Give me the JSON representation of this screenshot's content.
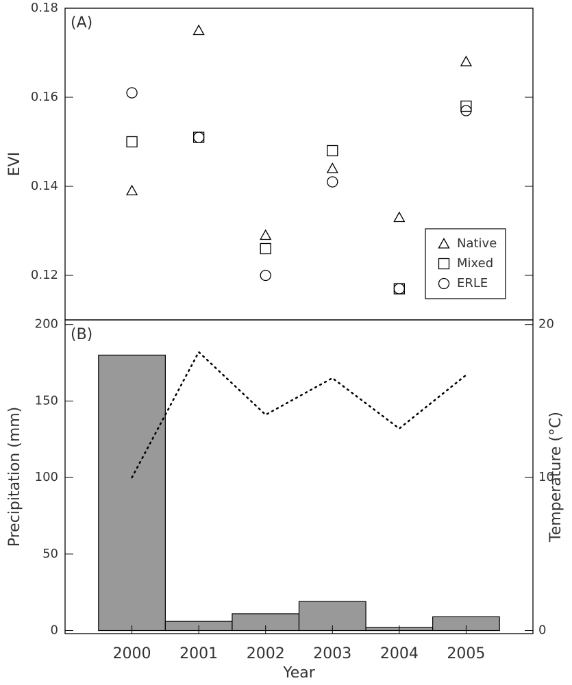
{
  "chart_data": [
    {
      "type": "scatter",
      "label": "(A)",
      "ylabel": "EVI",
      "x": [
        2000,
        2001,
        2002,
        2003,
        2004,
        2005
      ],
      "xlim": [
        1999,
        2006
      ],
      "ylim": [
        0.11,
        0.18
      ],
      "yticks": [
        0.12,
        0.14,
        0.16,
        0.18
      ],
      "legend": "lower right",
      "series": [
        {
          "name": "Native",
          "marker": "triangle",
          "color": "#000000",
          "values": [
            0.139,
            0.175,
            0.129,
            0.144,
            0.133,
            0.168
          ]
        },
        {
          "name": "Mixed",
          "marker": "square",
          "color": "#000000",
          "values": [
            0.15,
            0.151,
            0.126,
            0.148,
            0.117,
            0.158
          ]
        },
        {
          "name": "ERLE",
          "marker": "circle",
          "color": "#000000",
          "values": [
            0.161,
            0.151,
            0.12,
            0.141,
            0.117,
            0.157
          ]
        }
      ]
    },
    {
      "type": "bar",
      "label": "(B)",
      "xlabel": "Year",
      "ylabel": "Precipitation (mm)",
      "y2label": "Temperature (°C)",
      "x": [
        2000,
        2001,
        2002,
        2003,
        2004,
        2005
      ],
      "xlim": [
        1999,
        2006
      ],
      "xticks": [
        2000,
        2001,
        2002,
        2003,
        2004,
        2005
      ],
      "ylim": [
        -2,
        203
      ],
      "yticks": [
        0,
        50,
        100,
        150,
        200
      ],
      "y2lim": [
        -0.2,
        20.3
      ],
      "y2ticks": [
        0,
        10,
        20
      ],
      "series": [
        {
          "type": "bar",
          "color": "#999999",
          "values": [
            180,
            6,
            11,
            19,
            2,
            9
          ]
        },
        {
          "type": "line",
          "axis": "y2",
          "style": "dotted",
          "color": "#000000",
          "values": [
            10.0,
            18.2,
            14.1,
            16.5,
            13.2,
            16.7
          ]
        }
      ]
    }
  ]
}
